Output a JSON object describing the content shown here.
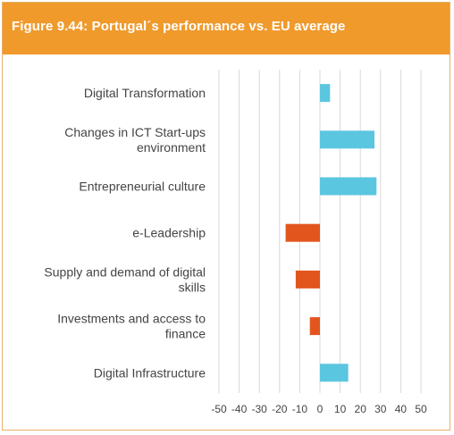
{
  "figure": {
    "title": "Figure 9.44: Portugal´s performance vs. EU average"
  },
  "colors": {
    "header": "#f09a2c",
    "positive": "#5bc6e0",
    "negative": "#e2561e",
    "grid": "#d9d9d9"
  },
  "chart_data": {
    "type": "bar",
    "orientation": "horizontal",
    "categories": [
      [
        "Digital Transformation"
      ],
      [
        "Changes in ICT Start-ups",
        "environment"
      ],
      [
        "Entrepreneurial culture"
      ],
      [
        "e-Leadership"
      ],
      [
        "Supply and demand of digital",
        "skills"
      ],
      [
        "Investments and access to",
        "finance"
      ],
      [
        "Digital Infrastructure"
      ]
    ],
    "values": [
      5,
      27,
      28,
      -17,
      -12,
      -5,
      14
    ],
    "xlim": [
      -50,
      50
    ],
    "ticks": [
      -50,
      -40,
      -30,
      -20,
      -10,
      0,
      10,
      20,
      30,
      40,
      50
    ],
    "tick_labels": [
      "-50",
      "-40",
      "-30",
      "-20",
      "-10",
      "0",
      "10",
      "20",
      "30",
      "40",
      "50"
    ],
    "grid": "vertical",
    "legend": "none"
  }
}
